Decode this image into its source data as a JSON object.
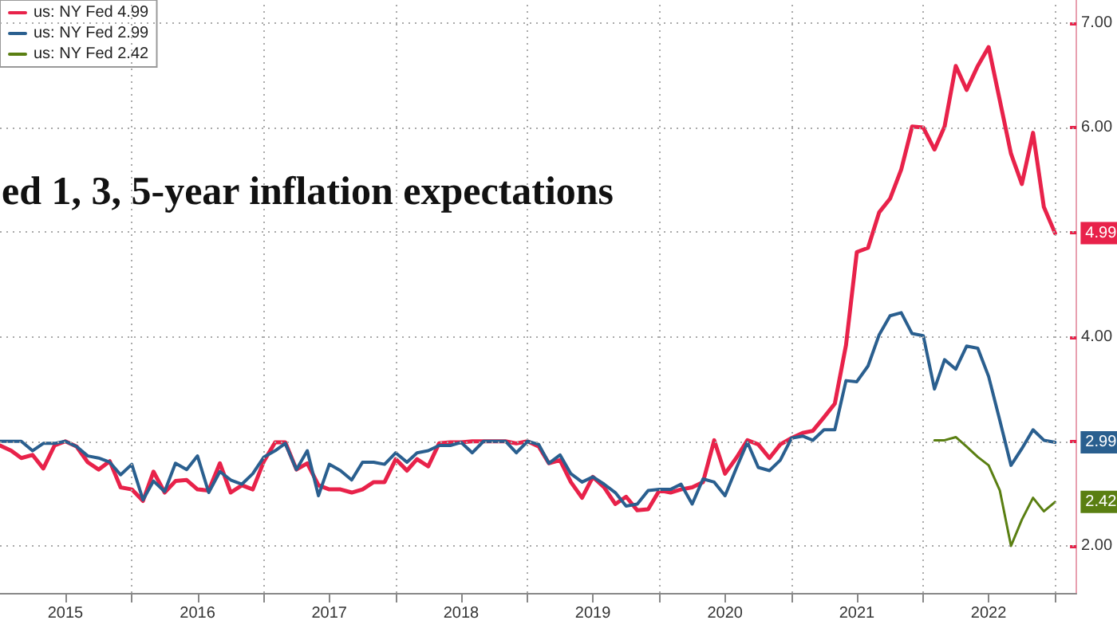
{
  "chart_data": {
    "type": "line",
    "title": "ed 1, 3, 5-year inflation expectations",
    "x": [
      "2015-01",
      "2015-02",
      "2015-03",
      "2015-04",
      "2015-05",
      "2015-06",
      "2015-07",
      "2015-08",
      "2015-09",
      "2015-10",
      "2015-11",
      "2015-12",
      "2016-01",
      "2016-02",
      "2016-03",
      "2016-04",
      "2016-05",
      "2016-06",
      "2016-07",
      "2016-08",
      "2016-09",
      "2016-10",
      "2016-11",
      "2016-12",
      "2017-01",
      "2017-02",
      "2017-03",
      "2017-04",
      "2017-05",
      "2017-06",
      "2017-07",
      "2017-08",
      "2017-09",
      "2017-10",
      "2017-11",
      "2017-12",
      "2018-01",
      "2018-02",
      "2018-03",
      "2018-04",
      "2018-05",
      "2018-06",
      "2018-07",
      "2018-08",
      "2018-09",
      "2018-10",
      "2018-11",
      "2018-12",
      "2019-01",
      "2019-02",
      "2019-03",
      "2019-04",
      "2019-05",
      "2019-06",
      "2019-07",
      "2019-08",
      "2019-09",
      "2019-10",
      "2019-11",
      "2019-12",
      "2020-01",
      "2020-02",
      "2020-03",
      "2020-04",
      "2020-05",
      "2020-06",
      "2020-07",
      "2020-08",
      "2020-09",
      "2020-10",
      "2020-11",
      "2020-12",
      "2021-01",
      "2021-02",
      "2021-03",
      "2021-04",
      "2021-05",
      "2021-06",
      "2021-07",
      "2021-08",
      "2021-09",
      "2021-10",
      "2021-11",
      "2021-12",
      "2022-01",
      "2022-02",
      "2022-03",
      "2022-04",
      "2022-05",
      "2022-06",
      "2022-07",
      "2022-08",
      "2022-09",
      "2022-10",
      "2022-11",
      "2022-12",
      "2023-01"
    ],
    "series": [
      {
        "name": "us: NY Fed 4.99",
        "color": "#e8224a",
        "values": [
          2.96,
          2.91,
          2.84,
          2.87,
          2.74,
          2.96,
          3.0,
          2.95,
          2.8,
          2.73,
          2.81,
          2.56,
          2.54,
          2.43,
          2.71,
          2.51,
          2.62,
          2.63,
          2.54,
          2.53,
          2.79,
          2.51,
          2.58,
          2.54,
          2.81,
          2.99,
          2.99,
          2.73,
          2.79,
          2.58,
          2.54,
          2.54,
          2.51,
          2.54,
          2.61,
          2.61,
          2.83,
          2.72,
          2.83,
          2.76,
          2.98,
          2.99,
          2.99,
          3.0,
          3.0,
          3.0,
          3.0,
          2.98,
          3.0,
          2.95,
          2.79,
          2.82,
          2.61,
          2.46,
          2.66,
          2.56,
          2.4,
          2.47,
          2.34,
          2.35,
          2.53,
          2.51,
          2.54,
          2.56,
          2.61,
          3.01,
          2.69,
          2.84,
          3.01,
          2.97,
          2.84,
          2.97,
          3.03,
          3.08,
          3.1,
          3.23,
          3.36,
          3.92,
          4.81,
          4.85,
          5.19,
          5.32,
          5.6,
          6.01,
          6.0,
          5.79,
          6.01,
          6.59,
          6.36,
          6.59,
          6.77,
          6.26,
          5.75,
          5.46,
          5.95,
          5.24,
          4.99
        ],
        "value_labels": [
          null,
          null,
          null,
          null,
          null,
          null,
          null,
          null,
          null,
          null,
          null,
          null,
          null,
          null,
          null,
          null,
          null,
          null,
          null,
          null,
          null,
          null,
          null,
          null,
          null,
          null,
          null,
          null,
          null,
          null,
          null,
          null,
          null,
          null,
          null,
          null,
          null,
          null,
          null,
          null,
          null,
          null,
          null,
          null,
          null,
          null,
          null,
          null,
          null,
          null,
          null,
          null,
          null,
          null,
          null,
          null,
          null,
          null,
          null,
          null,
          null,
          null,
          null,
          null,
          null,
          null,
          null,
          null,
          null,
          null,
          null,
          null,
          null,
          null,
          null,
          null,
          null,
          null,
          null,
          null,
          null,
          null,
          null,
          null,
          null,
          null,
          null,
          null,
          null,
          null,
          null,
          null,
          null,
          null,
          null,
          null,
          "4.99"
        ]
      },
      {
        "name": "us: NY Fed 2.99",
        "color": "#2a5f8f",
        "values": [
          3.0,
          3.0,
          3.0,
          2.91,
          2.98,
          2.98,
          3.0,
          2.95,
          2.86,
          2.84,
          2.8,
          2.68,
          2.78,
          2.44,
          2.62,
          2.52,
          2.79,
          2.73,
          2.86,
          2.51,
          2.71,
          2.63,
          2.59,
          2.69,
          2.85,
          2.91,
          2.98,
          2.73,
          2.91,
          2.48,
          2.78,
          2.72,
          2.63,
          2.8,
          2.8,
          2.78,
          2.89,
          2.8,
          2.89,
          2.91,
          2.96,
          2.96,
          2.99,
          2.89,
          3.0,
          3.0,
          3.0,
          2.89,
          3.0,
          2.97,
          2.79,
          2.87,
          2.69,
          2.61,
          2.66,
          2.59,
          2.51,
          2.38,
          2.4,
          2.53,
          2.54,
          2.54,
          2.59,
          2.4,
          2.64,
          2.61,
          2.48,
          2.74,
          2.99,
          2.75,
          2.72,
          2.82,
          3.03,
          3.05,
          3.01,
          3.11,
          3.11,
          3.58,
          3.57,
          3.72,
          4.02,
          4.2,
          4.23,
          4.03,
          4.01,
          3.5,
          3.78,
          3.69,
          3.91,
          3.89,
          3.62,
          3.2,
          2.77,
          2.93,
          3.11,
          3.01,
          2.99
        ],
        "value_labels": [
          null,
          null,
          null,
          null,
          null,
          null,
          null,
          null,
          null,
          null,
          null,
          null,
          null,
          null,
          null,
          null,
          null,
          null,
          null,
          null,
          null,
          null,
          null,
          null,
          null,
          null,
          null,
          null,
          null,
          null,
          null,
          null,
          null,
          null,
          null,
          null,
          null,
          null,
          null,
          null,
          null,
          null,
          null,
          null,
          null,
          null,
          null,
          null,
          null,
          null,
          null,
          null,
          null,
          null,
          null,
          null,
          null,
          null,
          null,
          null,
          null,
          null,
          null,
          null,
          null,
          null,
          null,
          null,
          null,
          null,
          null,
          null,
          null,
          null,
          null,
          null,
          null,
          null,
          null,
          null,
          null,
          null,
          null,
          null,
          null,
          null,
          null,
          null,
          null,
          null,
          null,
          null,
          null,
          null,
          null,
          null,
          "2.99"
        ]
      },
      {
        "name": "us: NY Fed 2.42",
        "color": "#5a7f12",
        "x": [
          "2022-02",
          "2022-03",
          "2022-04",
          "2022-05",
          "2022-06",
          "2022-07",
          "2022-08",
          "2022-09",
          "2022-10",
          "2022-11",
          "2022-12",
          "2023-01"
        ],
        "values": [
          3.01,
          3.01,
          3.04,
          2.95,
          2.85,
          2.77,
          2.53,
          2.0,
          2.25,
          2.46,
          2.33,
          2.42
        ],
        "value_labels": [
          null,
          null,
          null,
          null,
          null,
          null,
          null,
          null,
          null,
          null,
          null,
          "2.42"
        ]
      }
    ],
    "xlim": [
      "2015-01",
      "2023-03"
    ],
    "xticks": [
      {
        "value": "2015-07",
        "label": "2015"
      },
      {
        "value": "2016-01",
        "label": null
      },
      {
        "value": "2016-07",
        "label": "2016"
      },
      {
        "value": "2017-01",
        "label": null
      },
      {
        "value": "2017-07",
        "label": "2017"
      },
      {
        "value": "2018-01",
        "label": null
      },
      {
        "value": "2018-07",
        "label": "2018"
      },
      {
        "value": "2019-01",
        "label": null
      },
      {
        "value": "2019-07",
        "label": "2019"
      },
      {
        "value": "2020-01",
        "label": null
      },
      {
        "value": "2020-07",
        "label": "2020"
      },
      {
        "value": "2021-01",
        "label": null
      },
      {
        "value": "2021-07",
        "label": "2021"
      },
      {
        "value": "2022-01",
        "label": null
      },
      {
        "value": "2022-07",
        "label": "2022"
      },
      {
        "value": "2023-01",
        "label": null
      }
    ],
    "ylim": [
      1.55,
      7.22
    ],
    "yticks": [
      {
        "value": 2,
        "label": "2.00"
      },
      {
        "value": 3,
        "label": null
      },
      {
        "value": 4,
        "label": "4.00"
      },
      {
        "value": 5,
        "label": null
      },
      {
        "value": 6,
        "label": "6.00"
      },
      {
        "value": 7,
        "label": "7.00"
      }
    ],
    "grid": true,
    "legend": "top left",
    "marker": "none",
    "line_style": "solid"
  }
}
